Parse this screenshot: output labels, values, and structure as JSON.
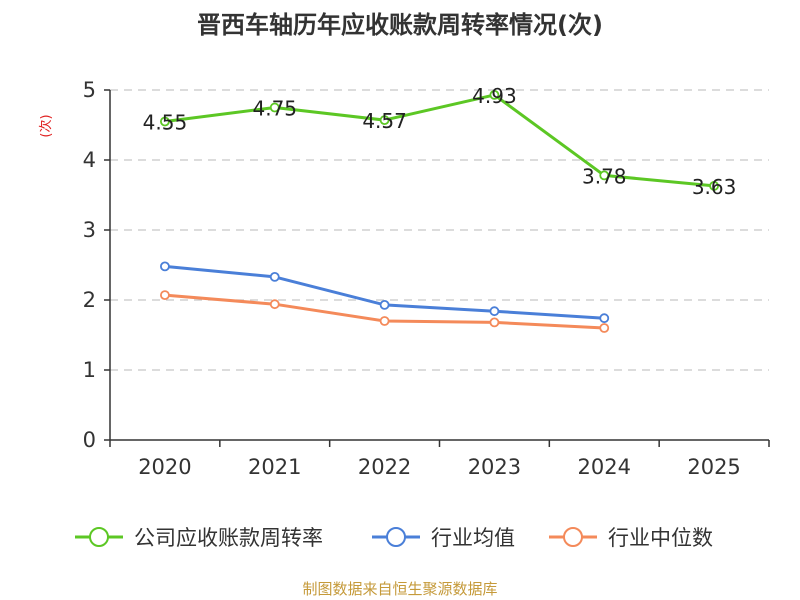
{
  "chart_data": {
    "type": "line",
    "title": "晋西车轴历年应收账款周转率情况(次)",
    "ylabel": "(次)",
    "xlabel": "",
    "categories": [
      "2020",
      "2021",
      "2022",
      "2023",
      "2024",
      "2025"
    ],
    "ylim": [
      0,
      5
    ],
    "yticks": [
      "0",
      "1",
      "2",
      "3",
      "4",
      "5"
    ],
    "grid": true,
    "legend_position": "bottom",
    "series": [
      {
        "name": "公司应收账款周转率",
        "color": "#5cc724",
        "values": [
          4.55,
          4.75,
          4.57,
          4.93,
          3.78,
          3.63
        ],
        "labels": [
          "4.55",
          "4.75",
          "4.57",
          "4.93",
          "3.78",
          "3.63"
        ]
      },
      {
        "name": "行业均值",
        "color": "#4a7fd8",
        "values": [
          2.48,
          2.33,
          1.93,
          1.84,
          1.74,
          null
        ]
      },
      {
        "name": "行业中位数",
        "color": "#f48a5a",
        "values": [
          2.07,
          1.94,
          1.7,
          1.68,
          1.6,
          null
        ]
      }
    ],
    "source": "制图数据来自恒生聚源数据库"
  }
}
